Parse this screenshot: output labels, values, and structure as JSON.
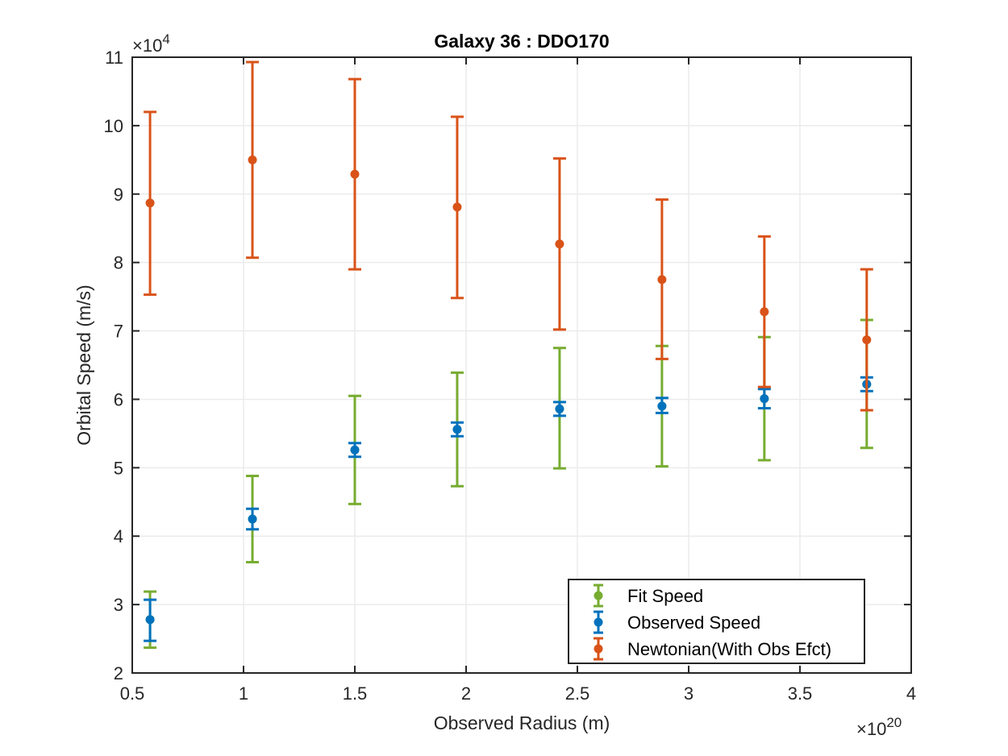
{
  "chart_data": {
    "type": "scatter",
    "title": "Galaxy 36 : DDO170",
    "xlabel": "Observed Radius (m)",
    "ylabel": "Orbital Speed (m/s)",
    "x_multiplier_label": "×10",
    "x_multiplier_exponent": "20",
    "y_multiplier_label": "×10",
    "y_multiplier_exponent": "4",
    "xlim": [
      0.5,
      4
    ],
    "ylim": [
      2,
      11
    ],
    "xticks": [
      0.5,
      1,
      1.5,
      2,
      2.5,
      3,
      3.5,
      4
    ],
    "xtick_labels": [
      "0.5",
      "1",
      "1.5",
      "2",
      "2.5",
      "3",
      "3.5",
      "4"
    ],
    "yticks": [
      2,
      3,
      4,
      5,
      6,
      7,
      8,
      9,
      10,
      11
    ],
    "ytick_labels": [
      "2",
      "3",
      "4",
      "5",
      "6",
      "7",
      "8",
      "9",
      "10",
      "11"
    ],
    "grid": true,
    "legend_position": "bottom-right",
    "x": [
      0.58,
      1.04,
      1.5,
      1.96,
      2.42,
      2.88,
      3.34,
      3.8
    ],
    "series": [
      {
        "name": "Fit Speed",
        "color": "#77ac30",
        "values": [
          2.78,
          4.25,
          5.26,
          5.56,
          5.86,
          5.9,
          6.01,
          6.22
        ],
        "err_low": [
          2.37,
          3.62,
          4.47,
          4.73,
          4.99,
          5.02,
          5.11,
          5.29
        ],
        "err_high": [
          3.19,
          4.88,
          6.05,
          6.39,
          6.75,
          6.78,
          6.91,
          7.16
        ]
      },
      {
        "name": "Observed Speed",
        "color": "#0072bd",
        "values": [
          2.78,
          4.25,
          5.26,
          5.56,
          5.86,
          5.9,
          6.01,
          6.22
        ],
        "err_low": [
          2.47,
          4.1,
          5.16,
          5.46,
          5.76,
          5.8,
          5.87,
          6.12
        ],
        "err_high": [
          3.07,
          4.4,
          5.36,
          5.66,
          5.96,
          6.02,
          6.15,
          6.32
        ]
      },
      {
        "name": "Newtonian(With Obs Efct)",
        "color": "#d95319",
        "values": [
          8.87,
          9.5,
          9.29,
          8.81,
          8.27,
          7.75,
          7.28,
          6.87
        ],
        "err_low": [
          7.53,
          8.07,
          7.9,
          7.48,
          7.02,
          6.59,
          6.18,
          5.84
        ],
        "err_high": [
          10.2,
          10.93,
          10.68,
          10.13,
          9.52,
          8.92,
          8.38,
          7.9
        ]
      }
    ]
  }
}
